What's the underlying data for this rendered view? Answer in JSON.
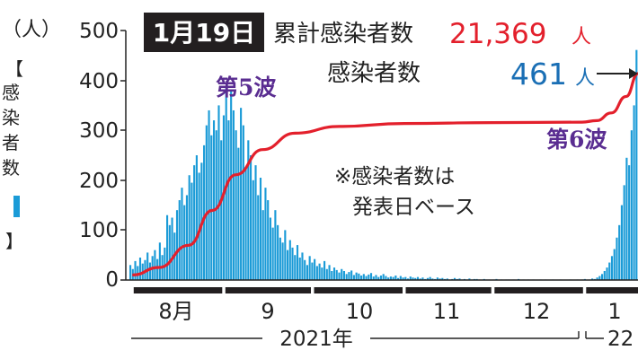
{
  "chart_data": {
    "type": "bar",
    "date_label": "1月19日",
    "cumulative_label": "累計感染者数",
    "cumulative_value": "21,369",
    "daily_label": "感染者数",
    "daily_value": "461",
    "unit_person": "人",
    "note_line1": "※感染者数は",
    "note_line2": "発表日ベース",
    "wave5_label": "第5波",
    "wave6_label": "第6波",
    "y_unit": "（人）",
    "y_axis_title": [
      "【",
      "感",
      "染",
      "者",
      "数",
      "",
      "】"
    ],
    "y_ticks": [
      "0",
      "100",
      "200",
      "300",
      "400",
      "500"
    ],
    "ylim": [
      0,
      500
    ],
    "month_labels": [
      "8月",
      "9",
      "10",
      "11",
      "12",
      "1"
    ],
    "year_labels": [
      "2021年",
      "22"
    ],
    "colors": {
      "bars": "#1b9bd7",
      "cumulative_line": "#e3202c",
      "wave_label": "#5a2d91",
      "daily_value": "#1a6fb5"
    },
    "series": [
      {
        "values": [
          30,
          22,
          38,
          28,
          45,
          33,
          40,
          55,
          35,
          48,
          60,
          42,
          75,
          50,
          65,
          130,
          110,
          125,
          95,
          140,
          160,
          185,
          150,
          170,
          210,
          195,
          230,
          250,
          215,
          235,
          270,
          310,
          340,
          290,
          320,
          300,
          350,
          280,
          330,
          385,
          320,
          380,
          340,
          300,
          265,
          345,
          310,
          225,
          280,
          250,
          200,
          230,
          170,
          205,
          140,
          185,
          160,
          125,
          105,
          140,
          110,
          85,
          75,
          100,
          60,
          80,
          65,
          50,
          70,
          45,
          55,
          40,
          30,
          48,
          35,
          42,
          28,
          33,
          25,
          38,
          22,
          30,
          18,
          25,
          20,
          15,
          22,
          18,
          12,
          16,
          19,
          10,
          15,
          13,
          9,
          12,
          8,
          11,
          14,
          7,
          10,
          6,
          9,
          12,
          8,
          5,
          7,
          6,
          9,
          4,
          8,
          5,
          6,
          3,
          7,
          5,
          4,
          6,
          3,
          5,
          2,
          4,
          6,
          3,
          2,
          5,
          3,
          4,
          2,
          3,
          1,
          2,
          4,
          2,
          3,
          1,
          2,
          1,
          3,
          1,
          2,
          2,
          1,
          0,
          2,
          1,
          1,
          0,
          1,
          2,
          0,
          1,
          0,
          1,
          1,
          0,
          1,
          0,
          2,
          0,
          1,
          0,
          1,
          0,
          1,
          0,
          0,
          1,
          0,
          1,
          0,
          0,
          1,
          0,
          0,
          1,
          0,
          0,
          0,
          1,
          0,
          0,
          1,
          0,
          1,
          2,
          0,
          1,
          3,
          2,
          5,
          8,
          12,
          18,
          25,
          35,
          48,
          62,
          85,
          110,
          150,
          190,
          245,
          230,
          300,
          350,
          461
        ]
      }
    ],
    "cumulative": [
      {
        "x": "2021-08-01",
        "y": 520
      },
      {
        "x": "2021-08-10",
        "y": 1300
      },
      {
        "x": "2021-08-20",
        "y": 3600
      },
      {
        "x": "2021-08-28",
        "y": 7200
      },
      {
        "x": "2021-09-05",
        "y": 10900
      },
      {
        "x": "2021-09-14",
        "y": 13500
      },
      {
        "x": "2021-09-25",
        "y": 15200
      },
      {
        "x": "2021-10-10",
        "y": 15900
      },
      {
        "x": "2021-11-01",
        "y": 16200
      },
      {
        "x": "2021-12-01",
        "y": 16300
      },
      {
        "x": "2021-12-31",
        "y": 16340
      },
      {
        "x": "2022-01-05",
        "y": 16500
      },
      {
        "x": "2022-01-10",
        "y": 17300
      },
      {
        "x": "2022-01-15",
        "y": 19000
      },
      {
        "x": "2022-01-19",
        "y": 21369
      }
    ],
    "x_start": "2021-07-31",
    "x_end": "2022-01-19"
  }
}
